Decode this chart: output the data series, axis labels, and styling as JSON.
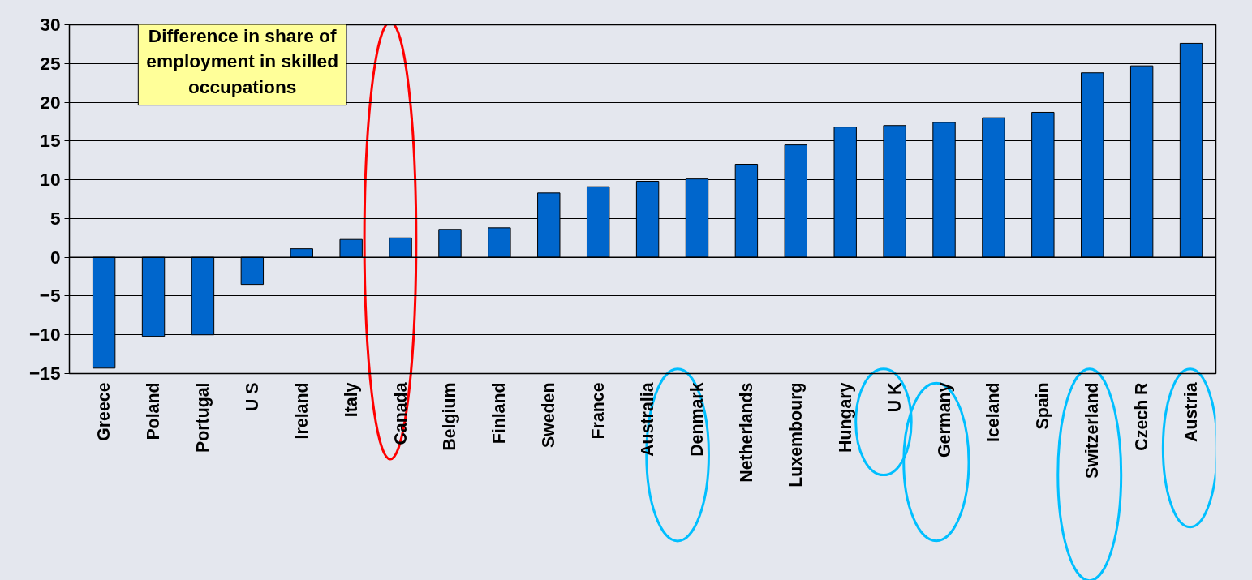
{
  "chart_data": {
    "type": "bar",
    "title": "Difference in share of employment in skilled occupations",
    "categories": [
      "Greece",
      "Poland",
      "Portugal",
      "U S",
      "Ireland",
      "Italy",
      "Canada",
      "Belgium",
      "Finland",
      "Sweden",
      "France",
      "Australia",
      "Denmark",
      "Netherlands",
      "Luxembourg",
      "Hungary",
      "U K",
      "Germany",
      "Iceland",
      "Spain",
      "Switzerland",
      "Czech R",
      "Austria"
    ],
    "values": [
      -14.3,
      -10.2,
      -10,
      -3.5,
      1.1,
      2.3,
      2.5,
      3.6,
      3.8,
      8.3,
      9.1,
      9.8,
      10.1,
      12,
      14.5,
      16.8,
      17,
      17.4,
      18,
      18.7,
      23.8,
      24.7,
      27.6
    ],
    "color": "#0066cc",
    "ylim": [
      -15,
      30
    ],
    "yticks": [
      -15,
      -10,
      -5,
      0,
      5,
      10,
      15,
      20,
      25,
      30
    ],
    "grid": "y"
  }
}
